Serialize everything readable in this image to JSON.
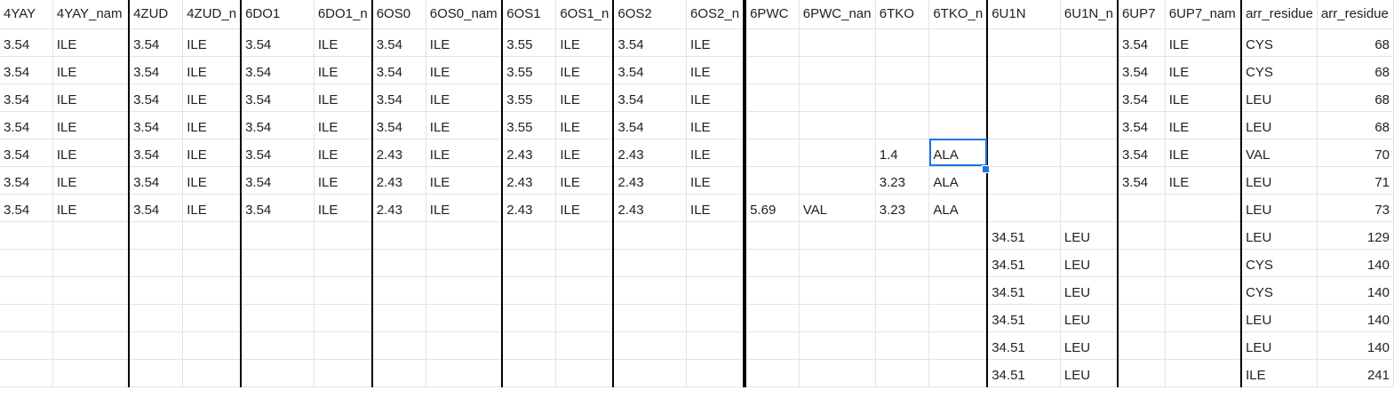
{
  "grid": {
    "headers": [
      "4YAY",
      "4YAY_nam",
      "4ZUD",
      "4ZUD_n",
      "6DO1",
      "6DO1_n",
      "6OS0",
      "6OS0_nam",
      "6OS1",
      "6OS1_n",
      "6OS2",
      "6OS2_n",
      "6PWC",
      "6PWC_nan",
      "6TKO",
      "6TKO_n",
      "6U1N",
      "6U1N_n",
      "6UP7",
      "6UP7_nam",
      "arr_residue",
      "arr_residue"
    ],
    "rows": [
      [
        "3.54",
        "ILE",
        "3.54",
        "ILE",
        "3.54",
        "ILE",
        "3.54",
        "ILE",
        "3.55",
        "ILE",
        "3.54",
        "ILE",
        "",
        "",
        "",
        "",
        "",
        "",
        "3.54",
        "ILE",
        "CYS",
        "68"
      ],
      [
        "3.54",
        "ILE",
        "3.54",
        "ILE",
        "3.54",
        "ILE",
        "3.54",
        "ILE",
        "3.55",
        "ILE",
        "3.54",
        "ILE",
        "",
        "",
        "",
        "",
        "",
        "",
        "3.54",
        "ILE",
        "CYS",
        "68"
      ],
      [
        "3.54",
        "ILE",
        "3.54",
        "ILE",
        "3.54",
        "ILE",
        "3.54",
        "ILE",
        "3.55",
        "ILE",
        "3.54",
        "ILE",
        "",
        "",
        "",
        "",
        "",
        "",
        "3.54",
        "ILE",
        "LEU",
        "68"
      ],
      [
        "3.54",
        "ILE",
        "3.54",
        "ILE",
        "3.54",
        "ILE",
        "3.54",
        "ILE",
        "3.55",
        "ILE",
        "3.54",
        "ILE",
        "",
        "",
        "",
        "",
        "",
        "",
        "3.54",
        "ILE",
        "LEU",
        "68"
      ],
      [
        "3.54",
        "ILE",
        "3.54",
        "ILE",
        "3.54",
        "ILE",
        "2.43",
        "ILE",
        "2.43",
        "ILE",
        "2.43",
        "ILE",
        "",
        "",
        "1.4",
        "ALA",
        "",
        "",
        "3.54",
        "ILE",
        "VAL",
        "70"
      ],
      [
        "3.54",
        "ILE",
        "3.54",
        "ILE",
        "3.54",
        "ILE",
        "2.43",
        "ILE",
        "2.43",
        "ILE",
        "2.43",
        "ILE",
        "",
        "",
        "3.23",
        "ALA",
        "",
        "",
        "3.54",
        "ILE",
        "LEU",
        "71"
      ],
      [
        "3.54",
        "ILE",
        "3.54",
        "ILE",
        "3.54",
        "ILE",
        "2.43",
        "ILE",
        "2.43",
        "ILE",
        "2.43",
        "ILE",
        "5.69",
        "VAL",
        "3.23",
        "ALA",
        "",
        "",
        "",
        "",
        "LEU",
        "73"
      ],
      [
        "",
        "",
        "",
        "",
        "",
        "",
        "",
        "",
        "",
        "",
        "",
        "",
        "",
        "",
        "",
        "",
        "34.51",
        "LEU",
        "",
        "",
        "LEU",
        "129"
      ],
      [
        "",
        "",
        "",
        "",
        "",
        "",
        "",
        "",
        "",
        "",
        "",
        "",
        "",
        "",
        "",
        "",
        "34.51",
        "LEU",
        "",
        "",
        "CYS",
        "140"
      ],
      [
        "",
        "",
        "",
        "",
        "",
        "",
        "",
        "",
        "",
        "",
        "",
        "",
        "",
        "",
        "",
        "",
        "34.51",
        "LEU",
        "",
        "",
        "CYS",
        "140"
      ],
      [
        "",
        "",
        "",
        "",
        "",
        "",
        "",
        "",
        "",
        "",
        "",
        "",
        "",
        "",
        "",
        "",
        "34.51",
        "LEU",
        "",
        "",
        "LEU",
        "140"
      ],
      [
        "",
        "",
        "",
        "",
        "",
        "",
        "",
        "",
        "",
        "",
        "",
        "",
        "",
        "",
        "",
        "",
        "34.51",
        "LEU",
        "",
        "",
        "LEU",
        "140"
      ],
      [
        "",
        "",
        "",
        "",
        "",
        "",
        "",
        "",
        "",
        "",
        "",
        "",
        "",
        "",
        "",
        "",
        "34.51",
        "LEU",
        "",
        "",
        "ILE",
        "241"
      ]
    ]
  }
}
